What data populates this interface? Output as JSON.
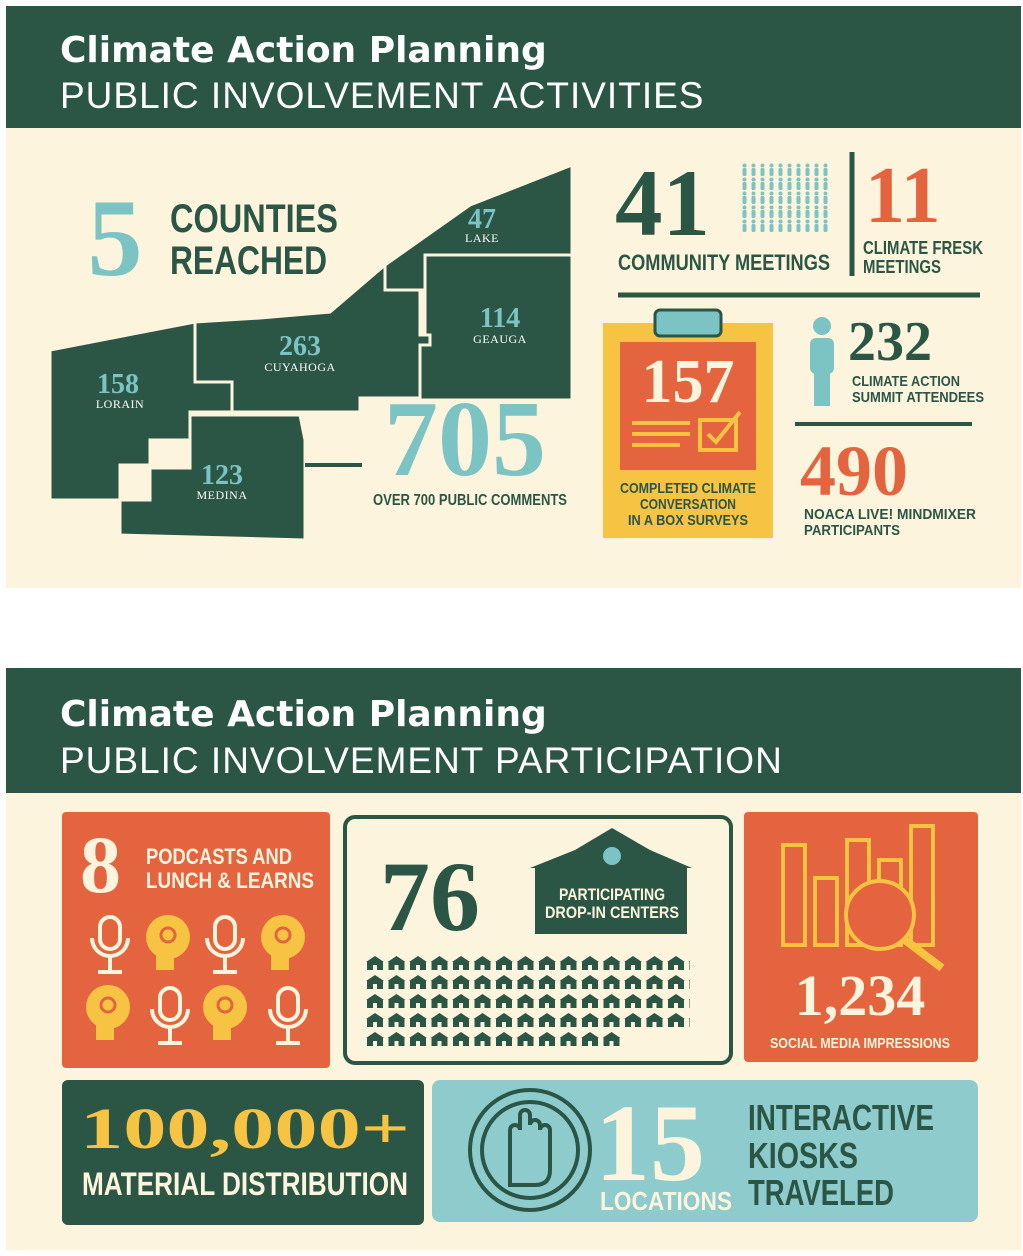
{
  "activities": {
    "title": "Climate Action Planning",
    "subtitle": "PUBLIC INVOLVEMENT ACTIVITIES",
    "counties": {
      "number": 5,
      "label_lines": [
        "COUNTIES",
        "REACHED"
      ]
    },
    "map": [
      {
        "value": 158,
        "name": "LORAIN"
      },
      {
        "value": 263,
        "name": "CUYAHOGA"
      },
      {
        "value": 47,
        "name": "LAKE"
      },
      {
        "value": 114,
        "name": "GEAUGA"
      },
      {
        "value": 123,
        "name": "MEDINA"
      }
    ],
    "comments": {
      "number": 705,
      "label": "OVER 700 PUBLIC COMMENTS"
    },
    "community": {
      "number": 41,
      "label": "COMMUNITY MEETINGS"
    },
    "fresk": {
      "number": 11,
      "label_lines": [
        "CLIMATE FRESK",
        "MEETINGS"
      ]
    },
    "surveys": {
      "number": 157,
      "label_lines": [
        "COMPLETED CLIMATE",
        "CONVERSATION",
        "IN A BOX SURVEYS"
      ]
    },
    "summit": {
      "number": 232,
      "label_lines": [
        "CLIMATE ACTION",
        "SUMMIT ATTENDEES"
      ]
    },
    "mindmixer": {
      "number": 490,
      "label_lines": [
        "NOACA LIVE! MINDMIXER",
        "PARTICIPANTS"
      ]
    }
  },
  "participation": {
    "title": "Climate Action Planning",
    "subtitle": "PUBLIC INVOLVEMENT PARTICIPATION",
    "podcasts": {
      "number": 8,
      "label_lines": [
        "PODCASTS AND",
        "LUNCH & LEARNS"
      ]
    },
    "dropin": {
      "number": 76,
      "label_lines": [
        "PARTICIPATING",
        "DROP-IN CENTERS"
      ]
    },
    "social": {
      "number": "1,234",
      "label": "SOCIAL MEDIA IMPRESSIONS"
    },
    "material": {
      "number": "100,000+",
      "label": "MATERIAL DISTRIBUTION"
    },
    "kiosks": {
      "number": 15,
      "unit": "LOCATIONS",
      "label_lines": [
        "INTERACTIVE",
        "KIOSKS",
        "TRAVELED"
      ]
    }
  }
}
